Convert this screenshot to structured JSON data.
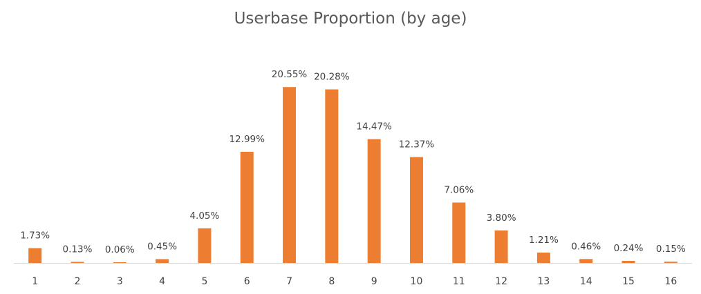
{
  "chart_data": {
    "type": "bar",
    "title": "Userbase Proportion (by age)",
    "xlabel": "",
    "ylabel": "",
    "categories": [
      "1",
      "2",
      "3",
      "4",
      "5",
      "6",
      "7",
      "8",
      "9",
      "10",
      "11",
      "12",
      "13",
      "14",
      "15",
      "16"
    ],
    "values": [
      1.73,
      0.13,
      0.06,
      0.45,
      4.05,
      12.99,
      20.55,
      20.28,
      14.47,
      12.37,
      7.06,
      3.8,
      1.21,
      0.46,
      0.24,
      0.15
    ],
    "data_labels": [
      "1.73%",
      "0.13%",
      "0.06%",
      "0.45%",
      "4.05%",
      "12.99%",
      "20.55%",
      "20.28%",
      "14.47%",
      "12.37%",
      "7.06%",
      "3.80%",
      "1.21%",
      "0.46%",
      "0.24%",
      "0.15%"
    ],
    "value_unit": "%",
    "ylim": [
      0,
      21
    ],
    "grid": false,
    "legend": "none",
    "bar_color": "#ED7D31",
    "axis_color": "#D9D9D9"
  }
}
